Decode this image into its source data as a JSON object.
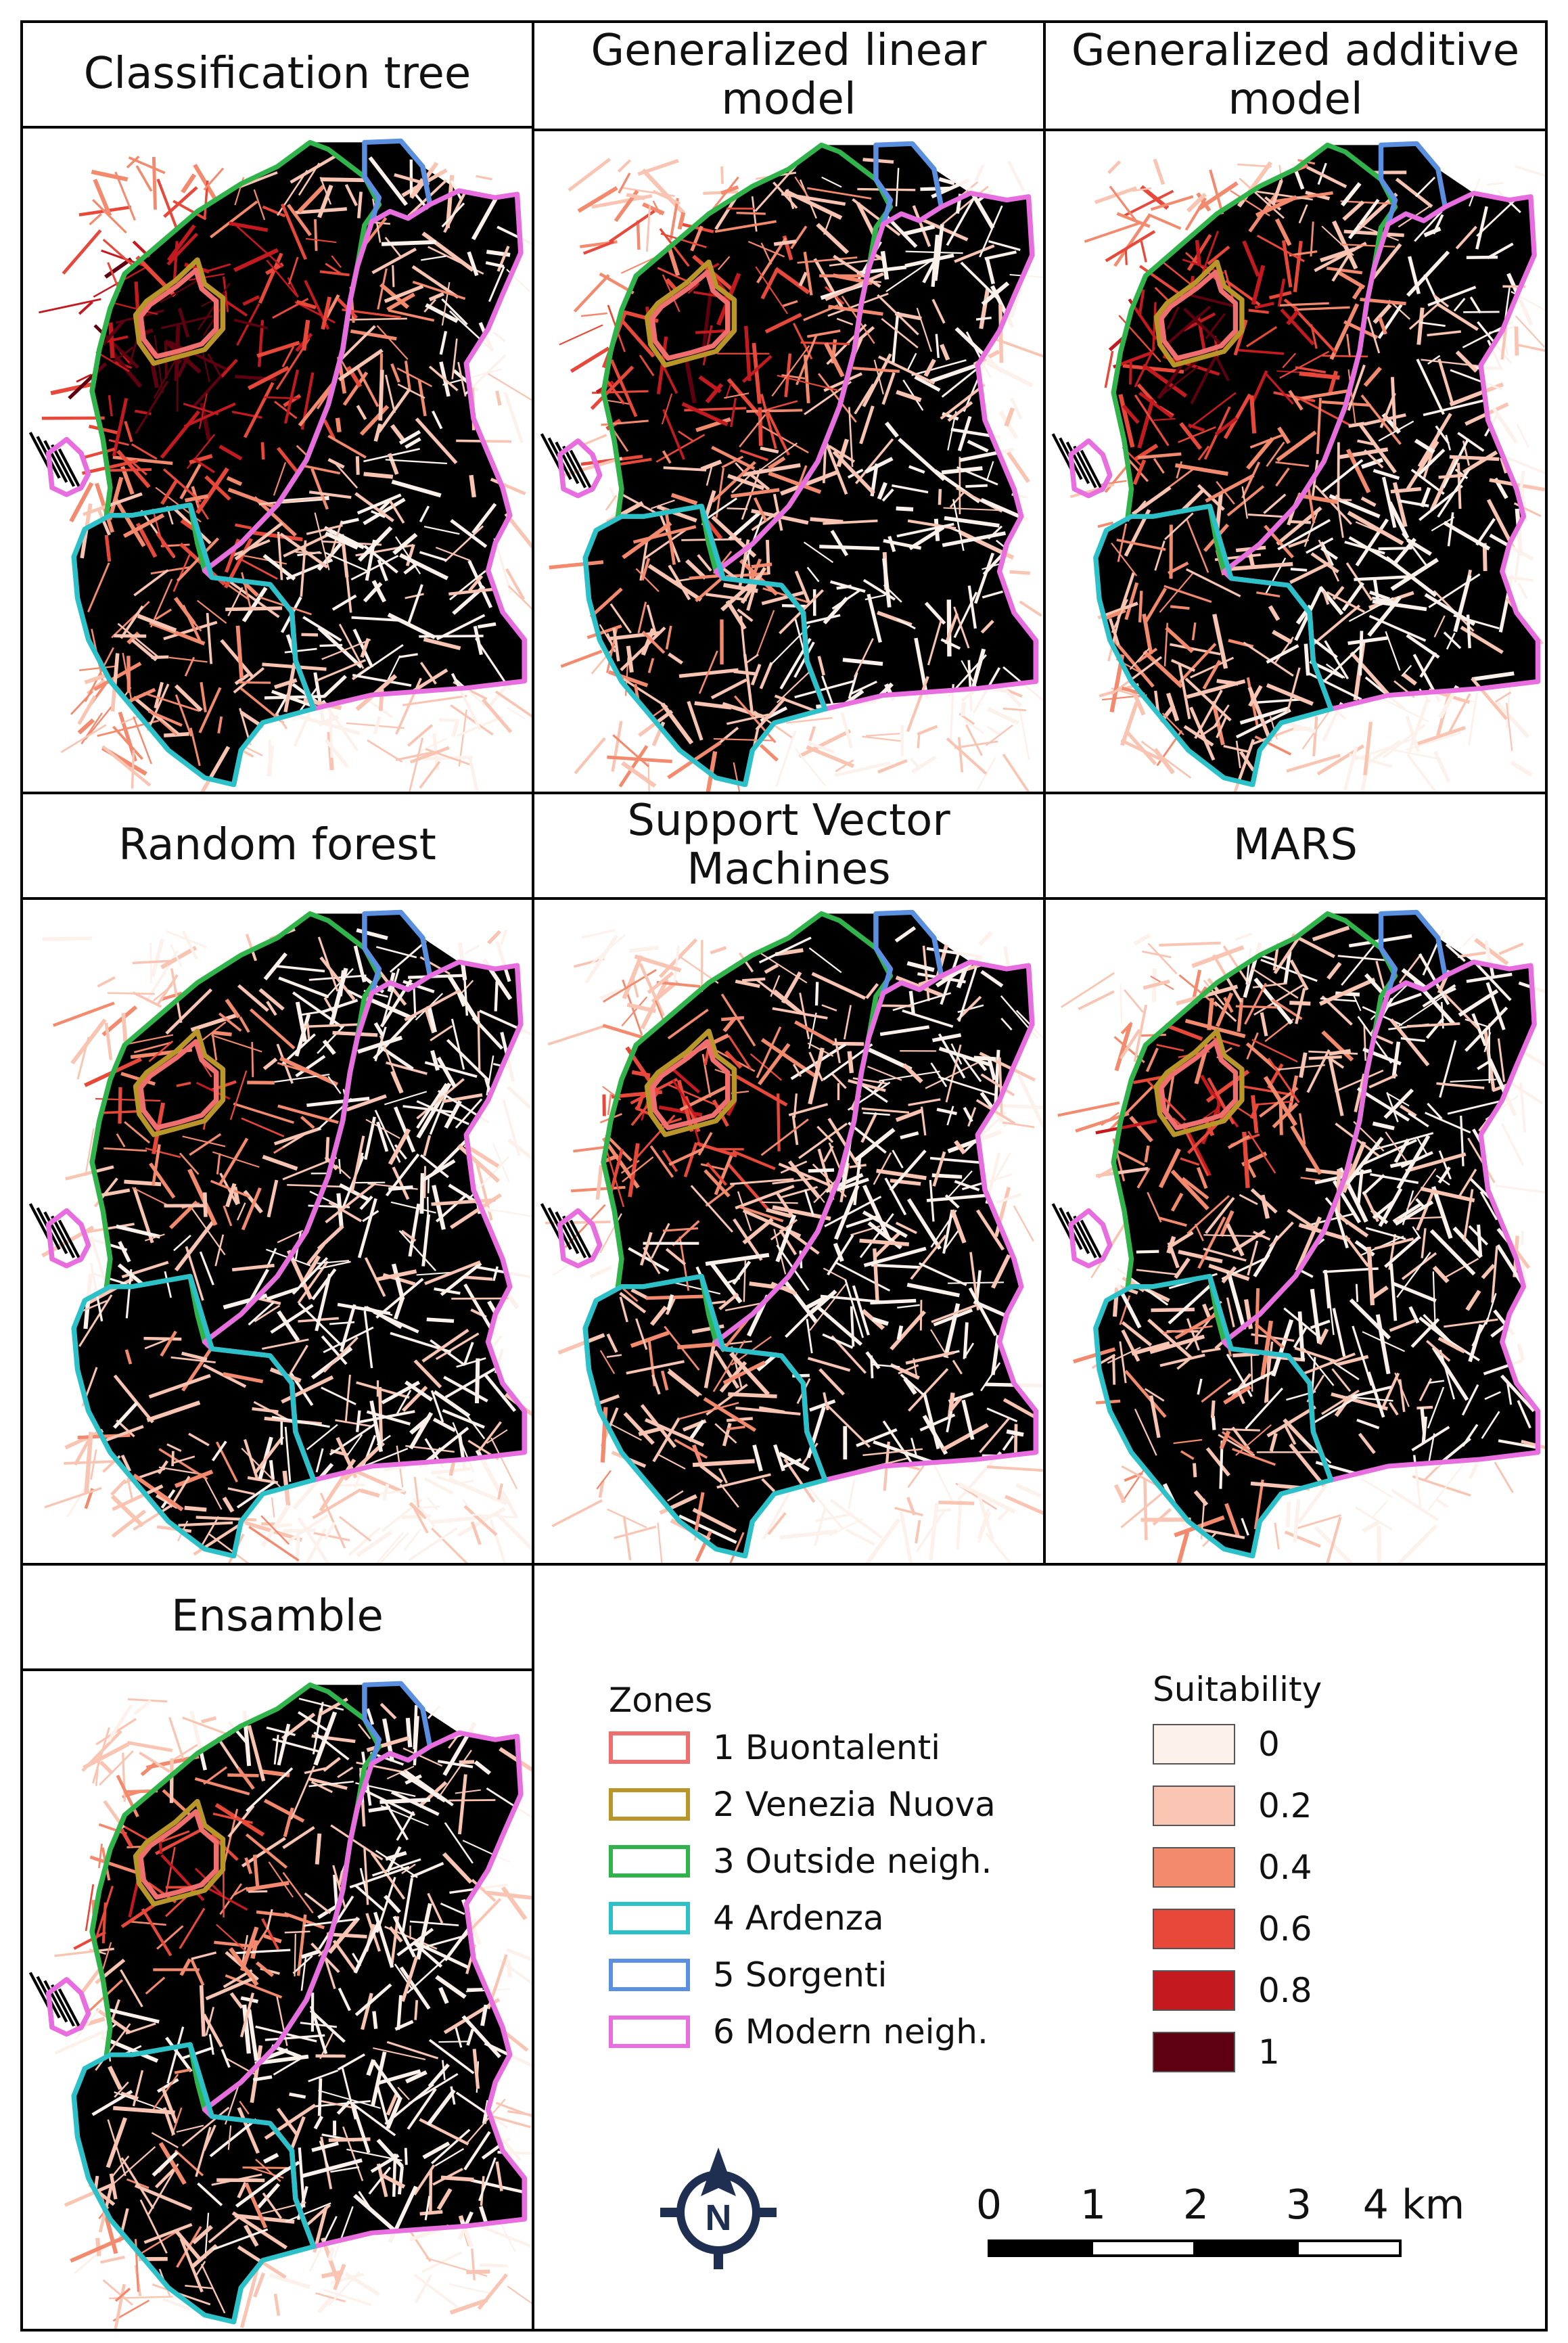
{
  "panels": [
    {
      "title": "Classification tree",
      "intensity": 0.9
    },
    {
      "title": "Generalized linear model",
      "intensity": 0.75
    },
    {
      "title": "Generalized additive model",
      "intensity": 0.8
    },
    {
      "title": "Random forest",
      "intensity": 0.55
    },
    {
      "title": "Support Vector Machines",
      "intensity": 0.6
    },
    {
      "title": "MARS",
      "intensity": 0.6
    },
    {
      "title": "Ensamble",
      "intensity": 0.6
    }
  ],
  "legend": {
    "zones_title": "Zones",
    "zones": [
      {
        "label": "1 Buontalenti",
        "color": "#ef6e6e"
      },
      {
        "label": "2 Venezia Nuova",
        "color": "#b8962a"
      },
      {
        "label": "3 Outside neigh.",
        "color": "#2fb34a"
      },
      {
        "label": "4 Ardenza",
        "color": "#2cc0c8"
      },
      {
        "label": "5 Sorgenti",
        "color": "#5b8fe0"
      },
      {
        "label": "6 Modern neigh.",
        "color": "#e86ee0"
      }
    ],
    "suitability_title": "Suitability",
    "suitability": [
      {
        "label": "0",
        "color": "#fdf1ec"
      },
      {
        "label": "0.2",
        "color": "#f9c4b1"
      },
      {
        "label": "0.4",
        "color": "#f48a6d"
      },
      {
        "label": "0.6",
        "color": "#e8483a"
      },
      {
        "label": "0.8",
        "color": "#c41a1f"
      },
      {
        "label": "1",
        "color": "#5e0010"
      }
    ]
  },
  "north_arrow": {
    "letter": "N",
    "icon": "compass-north-icon"
  },
  "scale_bar": {
    "ticks": [
      "0",
      "1",
      "2",
      "3",
      "4 km"
    ]
  }
}
